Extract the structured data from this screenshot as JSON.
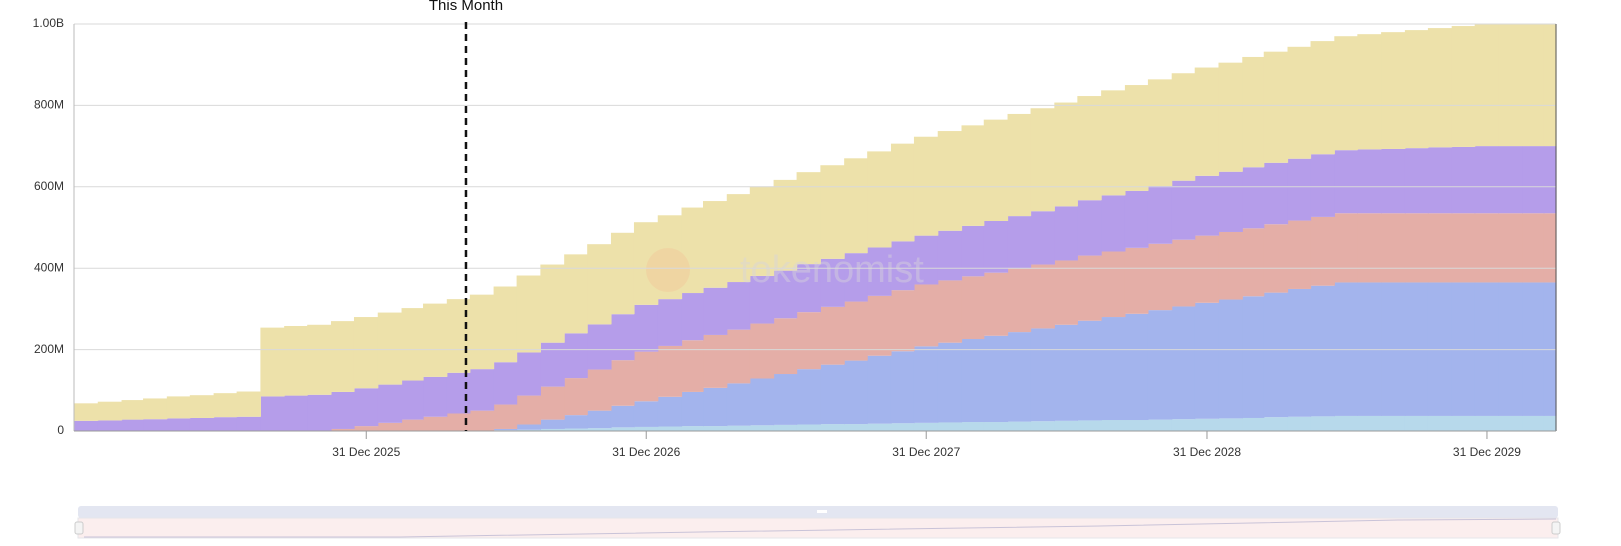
{
  "chart_data": {
    "type": "stacked-step-area",
    "watermark": "tokenomist",
    "x": [
      "2024-12-15",
      "2025-01-15",
      "2025-02-15",
      "2025-03-15",
      "2025-04-15",
      "2025-05-15",
      "2025-06-15",
      "2025-07-15",
      "2025-08-15",
      "2025-09-15",
      "2025-10-15",
      "2025-11-15",
      "2025-12-15",
      "2026-01-15",
      "2026-02-15",
      "2026-03-15",
      "2026-04-15",
      "2026-05-15",
      "2026-06-15",
      "2026-07-15",
      "2026-08-15",
      "2026-09-15",
      "2026-10-15",
      "2026-11-15",
      "2026-12-15",
      "2027-01-15",
      "2027-02-15",
      "2027-03-15",
      "2027-04-15",
      "2027-05-15",
      "2027-06-15",
      "2027-07-15",
      "2027-08-15",
      "2027-09-15",
      "2027-10-15",
      "2027-11-15",
      "2027-12-15",
      "2028-01-15",
      "2028-02-15",
      "2028-03-15",
      "2028-04-15",
      "2028-05-15",
      "2028-06-15",
      "2028-07-15",
      "2028-08-15",
      "2028-09-15",
      "2028-10-15",
      "2028-11-15",
      "2028-12-15",
      "2029-01-15",
      "2029-02-15",
      "2029-03-15",
      "2029-04-15",
      "2029-05-15",
      "2029-06-15",
      "2029-07-15",
      "2029-08-15",
      "2029-09-15",
      "2029-10-15",
      "2029-11-15",
      "2029-12-15",
      "2030-01-15",
      "2030-02-15",
      "2030-03-15"
    ],
    "series": [
      {
        "color": "#b7d9eb",
        "values": [
          0,
          0,
          0,
          0,
          0,
          0,
          0,
          0,
          0,
          0,
          0,
          0,
          0,
          0,
          0,
          0,
          0,
          0,
          2000000.0,
          3000000.0,
          5000000.0,
          6000000.0,
          7000000.0,
          9000000.0,
          10000000.0,
          11000000.0,
          12000000.0,
          12000000.0,
          13000000.0,
          14000000.0,
          15000000.0,
          16000000.0,
          17000000.0,
          17000000.0,
          18000000.0,
          19000000.0,
          20000000.0,
          21000000.0,
          22000000.0,
          22000000.0,
          23000000.0,
          24000000.0,
          25000000.0,
          26000000.0,
          27000000.0,
          27000000.0,
          28000000.0,
          29000000.0,
          30000000.0,
          31000000.0,
          32000000.0,
          34000000.0,
          35000000.0,
          36000000.0,
          37000000.0,
          37000000.0,
          37000000.0,
          37000000.0,
          37000000.0,
          37000000.0,
          37000000.0,
          37000000.0,
          37000000.0,
          37000000.0
        ]
      },
      {
        "color": "#a3b4ed",
        "values": [
          0,
          0,
          0,
          0,
          0,
          0,
          0,
          0,
          0,
          0,
          0,
          0,
          0,
          0,
          0,
          0,
          0,
          0,
          3000000.0,
          13000000.0,
          23000000.0,
          33000000.0,
          43000000.0,
          53000000.0,
          63000000.0,
          73000000.0,
          84000000.0,
          94000000.0,
          104000000.0,
          115000000.0,
          125000000.0,
          136000000.0,
          146000000.0,
          156000000.0,
          167000000.0,
          177000000.0,
          188000000.0,
          196000000.0,
          204000000.0,
          212000000.0,
          220000000.0,
          228000000.0,
          236000000.0,
          245000000.0,
          253000000.0,
          261000000.0,
          269000000.0,
          277000000.0,
          285000000.0,
          292000000.0,
          299000000.0,
          306000000.0,
          314000000.0,
          321000000.0,
          328000000.0,
          328000000.0,
          328000000.0,
          328000000.0,
          328000000.0,
          328000000.0,
          328000000.0,
          328000000.0,
          328000000.0,
          328000000.0
        ]
      },
      {
        "color": "#e4aea7",
        "values": [
          0,
          0,
          0,
          0,
          0,
          0,
          0,
          0,
          0,
          0,
          0,
          5000000.0,
          12000000.0,
          20000000.0,
          28000000.0,
          35000000.0,
          43000000.0,
          50000000.0,
          60000000.0,
          71000000.0,
          81000000.0,
          91000000.0,
          101000000.0,
          112000000.0,
          122000000.0,
          125000000.0,
          127000000.0,
          130000000.0,
          132000000.0,
          135000000.0,
          137000000.0,
          140000000.0,
          142000000.0,
          145000000.0,
          147000000.0,
          150000000.0,
          152000000.0,
          153000000.0,
          154000000.0,
          155000000.0,
          156000000.0,
          157000000.0,
          158000000.0,
          160000000.0,
          161000000.0,
          162000000.0,
          163000000.0,
          164000000.0,
          165000000.0,
          166000000.0,
          167000000.0,
          168000000.0,
          168000000.0,
          169000000.0,
          170000000.0,
          170000000.0,
          170000000.0,
          170000000.0,
          170000000.0,
          170000000.0,
          170000000.0,
          170000000.0,
          170000000.0,
          170000000.0
        ]
      },
      {
        "color": "#b59dea",
        "values": [
          25000000.0,
          26000000.0,
          28000000.0,
          29000000.0,
          31000000.0,
          32000000.0,
          34000000.0,
          35000000.0,
          85000000.0,
          87000000.0,
          89000000.0,
          91000000.0,
          93000000.0,
          94000000.0,
          96000000.0,
          98000000.0,
          100000000.0,
          102000000.0,
          104000000.0,
          106000000.0,
          108000000.0,
          110000000.0,
          111000000.0,
          113000000.0,
          115000000.0,
          115000000.0,
          116000000.0,
          116000000.0,
          117000000.0,
          117000000.0,
          117000000.0,
          118000000.0,
          118000000.0,
          119000000.0,
          119000000.0,
          120000000.0,
          120000000.0,
          122000000.0,
          124000000.0,
          127000000.0,
          129000000.0,
          131000000.0,
          133000000.0,
          136000000.0,
          138000000.0,
          140000000.0,
          142000000.0,
          145000000.0,
          147000000.0,
          148000000.0,
          150000000.0,
          151000000.0,
          152000000.0,
          154000000.0,
          155000000.0,
          157000000.0,
          158000000.0,
          160000000.0,
          162000000.0,
          163000000.0,
          165000000.0,
          165000000.0,
          165000000.0,
          165000000.0
        ]
      },
      {
        "color": "#ede1aa",
        "values": [
          43000000.0,
          46000000.0,
          48000000.0,
          51000000.0,
          54000000.0,
          56000000.0,
          59000000.0,
          62000000.0,
          169000000.0,
          171000000.0,
          172000000.0,
          174000000.0,
          175000000.0,
          177000000.0,
          178000000.0,
          180000000.0,
          181000000.0,
          183000000.0,
          186000000.0,
          189000000.0,
          192000000.0,
          194000000.0,
          197000000.0,
          200000000.0,
          203000000.0,
          206000000.0,
          210000000.0,
          213000000.0,
          216000000.0,
          220000000.0,
          223000000.0,
          226000000.0,
          230000000.0,
          233000000.0,
          236000000.0,
          240000000.0,
          243000000.0,
          245000000.0,
          247000000.0,
          249000000.0,
          251000000.0,
          253000000.0,
          255000000.0,
          256000000.0,
          258000000.0,
          260000000.0,
          262000000.0,
          264000000.0,
          266000000.0,
          268000000.0,
          271000000.0,
          273000000.0,
          275000000.0,
          278000000.0,
          280000000.0,
          283000000.0,
          287000000.0,
          290000000.0,
          293000000.0,
          297000000.0,
          300000000.0,
          300000000.0,
          300000000.0,
          300000000.0
        ]
      }
    ],
    "xlim": [
      "2024-12-15",
      "2030-03-31"
    ],
    "xticks": [
      {
        "value": "2025-12-31",
        "label": "31 Dec 2025"
      },
      {
        "value": "2026-12-31",
        "label": "31 Dec 2026"
      },
      {
        "value": "2027-12-31",
        "label": "31 Dec 2027"
      },
      {
        "value": "2028-12-31",
        "label": "31 Dec 2028"
      },
      {
        "value": "2029-12-31",
        "label": "31 Dec 2029"
      }
    ],
    "ylim": [
      0,
      1000000000
    ],
    "yticks": [
      0,
      {
        "value": 200000000,
        "label": "200M"
      },
      {
        "value": 400000000,
        "label": "400M"
      },
      {
        "value": 600000000,
        "label": "600M"
      },
      {
        "value": 800000000,
        "label": "800M"
      },
      {
        "value": 1000000000,
        "label": "1.00B"
      }
    ],
    "grid": true,
    "markers": [
      {
        "x": "2026-05-10",
        "label": "This Month"
      }
    ]
  }
}
